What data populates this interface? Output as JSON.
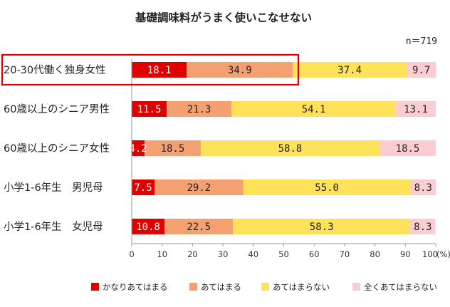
{
  "chart_data": {
    "type": "bar",
    "orientation": "horizontal",
    "stacked": true,
    "title": "基礎調味料がうまく使いこなせない",
    "sample_size": "n＝719",
    "categories": [
      "20-30代働く独身女性",
      "60歳以上のシニア男性",
      "60歳以上のシニア女性",
      "小学1-6年生　男児母",
      "小学1-6年生　女児母"
    ],
    "series": [
      {
        "name": "かなりあてはまる",
        "color": "#e00000",
        "label_color": "#ffffff",
        "values": [
          18.1,
          11.5,
          4.2,
          7.5,
          10.8
        ]
      },
      {
        "name": "あてはまる",
        "color": "#f5a070",
        "label_color": "#222222",
        "values": [
          34.9,
          21.3,
          18.5,
          29.2,
          22.5
        ]
      },
      {
        "name": "あてはまらない",
        "color": "#ffe25a",
        "label_color": "#222222",
        "values": [
          37.4,
          54.1,
          58.8,
          55.0,
          58.3
        ]
      },
      {
        "name": "全くあてはまらない",
        "color": "#f9cdd2",
        "label_color": "#222222",
        "values": [
          9.7,
          13.1,
          18.5,
          8.3,
          8.3
        ]
      }
    ],
    "xlim": [
      0,
      100
    ],
    "xticks": [
      "0",
      "10",
      "20",
      "30",
      "40",
      "50",
      "60",
      "70",
      "80",
      "90",
      "100"
    ],
    "x_unit": "(%)",
    "highlight_category_index": 0,
    "highlight_color": "#e00000",
    "legend_position": "bottom"
  }
}
